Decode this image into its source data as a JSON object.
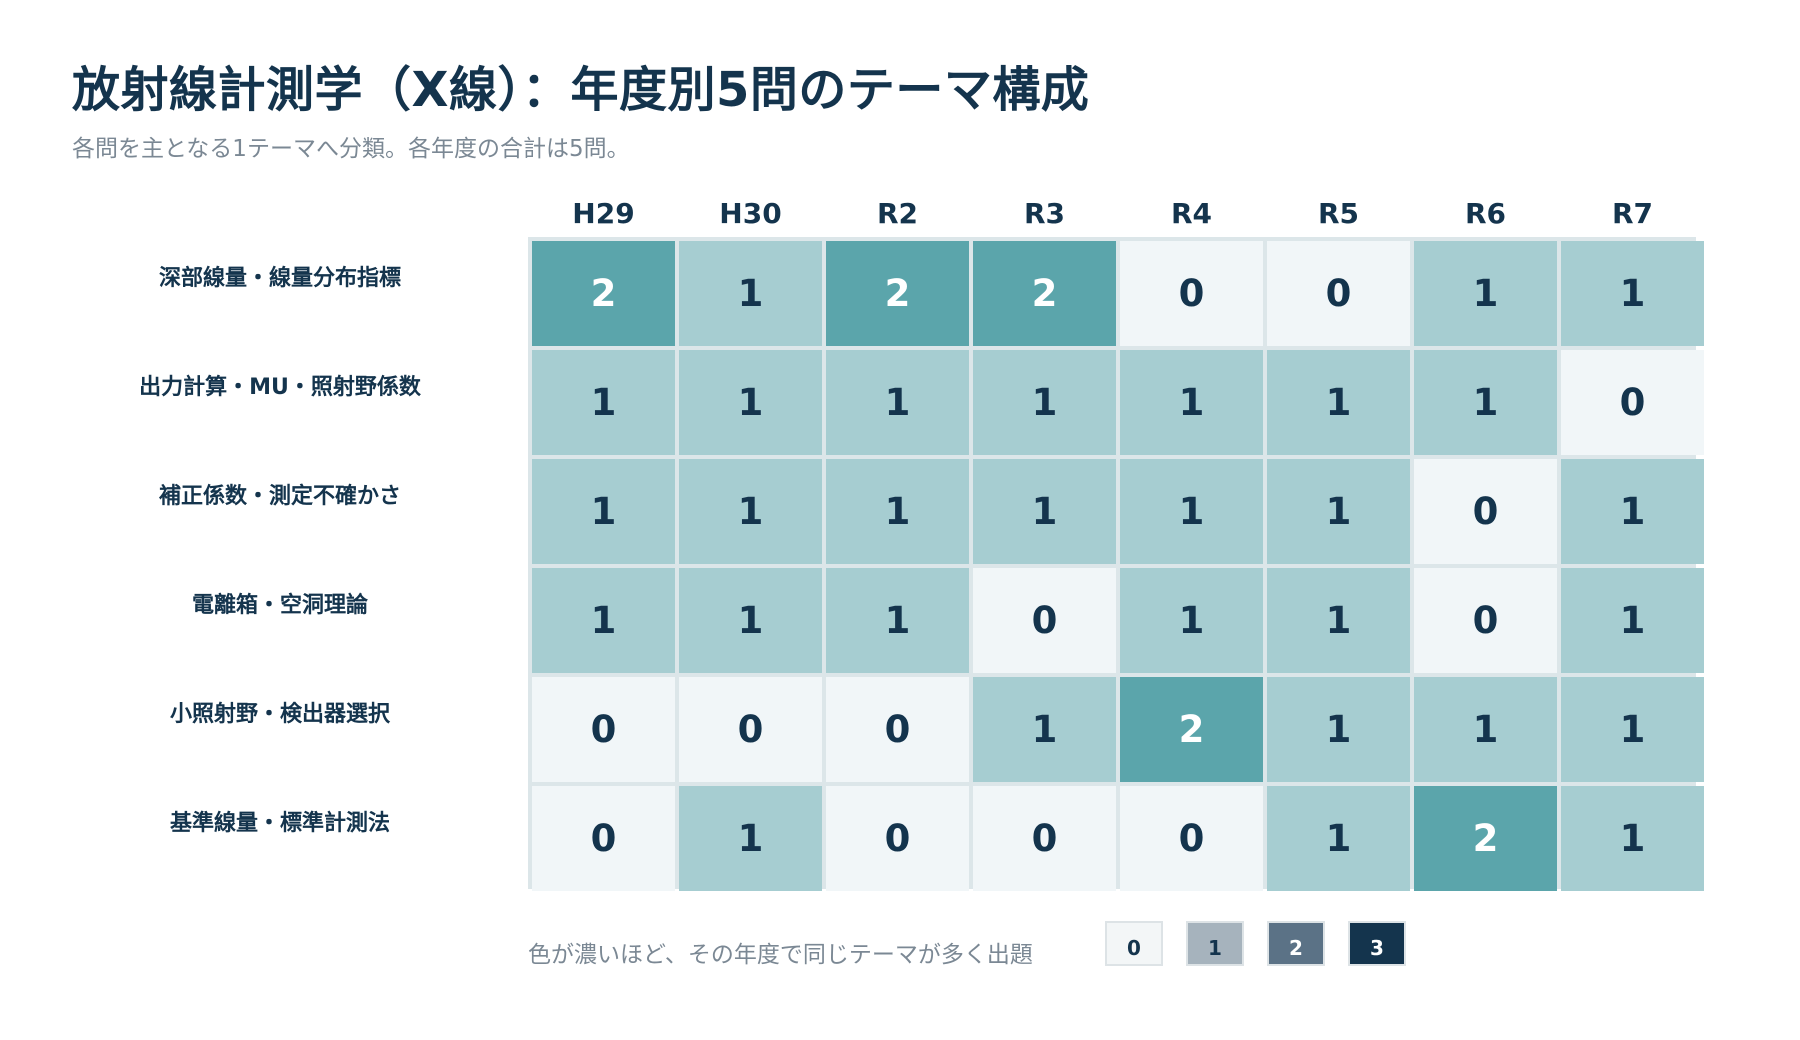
{
  "chart_data": {
    "type": "heatmap",
    "title": "放射線計測学（X線）：年度別5問のテーマ構成",
    "subtitle": "各問を主となる1テーマへ分類。各年度の合計は5問。",
    "x": [
      "H29",
      "H30",
      "R2",
      "R3",
      "R4",
      "R5",
      "R6",
      "R7"
    ],
    "y": [
      "深部線量・線量分布指標",
      "出力計算・MU・照射野係数",
      "補正係数・測定不確かさ",
      "電離箱・空洞理論",
      "小照射野・検出器選択",
      "基準線量・標準計測法"
    ],
    "values": [
      [
        2,
        1,
        2,
        2,
        0,
        0,
        1,
        1
      ],
      [
        1,
        1,
        1,
        1,
        1,
        1,
        1,
        0
      ],
      [
        1,
        1,
        1,
        1,
        1,
        1,
        0,
        1
      ],
      [
        1,
        1,
        1,
        0,
        1,
        1,
        0,
        1
      ],
      [
        0,
        0,
        0,
        1,
        2,
        1,
        1,
        1
      ],
      [
        0,
        1,
        0,
        0,
        0,
        1,
        2,
        1
      ]
    ],
    "cell_colors": {
      "0": "#f1f6f8",
      "1": "#a6cdd1",
      "2": "#5ba5ab",
      "3": "#2f7f86"
    },
    "cell_text_colors": {
      "0": "#14344d",
      "1": "#14344d",
      "2": "#ffffff",
      "3": "#ffffff"
    }
  },
  "legend": {
    "note": "色が濃いほど、その年度で同じテーマが多く出題",
    "items": [
      {
        "label": "0",
        "color": "#f3f6f7",
        "text_color": "#14344d"
      },
      {
        "label": "1",
        "color": "#a6b3bd",
        "text_color": "#14344d"
      },
      {
        "label": "2",
        "color": "#5b7286",
        "text_color": "#ffffff"
      },
      {
        "label": "3",
        "color": "#14344d",
        "text_color": "#ffffff"
      }
    ]
  }
}
